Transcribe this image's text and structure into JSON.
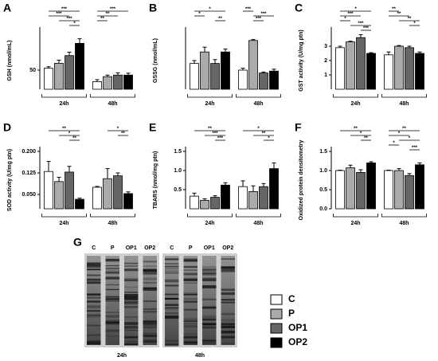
{
  "chart_data": [
    {
      "type": "bar",
      "panel": "A",
      "y_label": "GSH (nmol/mL)",
      "categories": [
        "24h",
        "48h"
      ],
      "ylim": [
        0,
        150
      ],
      "yticks": [
        50
      ],
      "series": [
        {
          "name": "C",
          "color": "#ffffff",
          "values": [
            55,
            20
          ],
          "errors": [
            4,
            5
          ]
        },
        {
          "name": "P",
          "color": "#aaaaaa",
          "values": [
            68,
            33
          ],
          "errors": [
            8,
            4
          ]
        },
        {
          "name": "OP1",
          "color": "#666666",
          "values": [
            88,
            37
          ],
          "errors": [
            9,
            6
          ]
        },
        {
          "name": "OP2",
          "color": "#000000",
          "values": [
            120,
            37
          ],
          "errors": [
            12,
            5
          ]
        }
      ],
      "significance": [
        {
          "group": "24h",
          "pair": [
            "C",
            "OP2"
          ],
          "label": "***"
        },
        {
          "group": "24h",
          "pair": [
            "C",
            "OP1"
          ],
          "label": "***"
        },
        {
          "group": "24h",
          "pair": [
            "P",
            "OP2"
          ],
          "label": "***"
        },
        {
          "group": "24h",
          "pair": [
            "OP1",
            "OP2"
          ],
          "label": "*"
        },
        {
          "group": "48h",
          "pair": [
            "C",
            "OP2"
          ],
          "label": "***"
        },
        {
          "group": "48h",
          "pair": [
            "C",
            "OP1"
          ],
          "label": "**"
        },
        {
          "group": "48h",
          "pair": [
            "C",
            "P"
          ],
          "label": "**"
        }
      ]
    },
    {
      "type": "bar",
      "panel": "B",
      "y_label": "GSSG (nmol/mL)",
      "categories": [
        "24h",
        "48h"
      ],
      "ylim": [
        0,
        60
      ],
      "yticks": [],
      "series": [
        {
          "name": "C",
          "color": "#ffffff",
          "values": [
            27,
            20
          ],
          "errors": [
            3,
            2
          ]
        },
        {
          "name": "P",
          "color": "#aaaaaa",
          "values": [
            39,
            51
          ],
          "errors": [
            5,
            1
          ]
        },
        {
          "name": "OP1",
          "color": "#666666",
          "values": [
            27,
            17
          ],
          "errors": [
            4,
            1
          ]
        },
        {
          "name": "OP2",
          "color": "#000000",
          "values": [
            39,
            19
          ],
          "errors": [
            3,
            2
          ]
        }
      ],
      "significance": [
        {
          "group": "24h",
          "pair": [
            "C",
            "OP2"
          ],
          "label": "*"
        },
        {
          "group": "24h",
          "pair": [
            "C",
            "P"
          ],
          "label": "*"
        },
        {
          "group": "24h",
          "pair": [
            "OP1",
            "OP2"
          ],
          "label": "**"
        },
        {
          "group": "48h",
          "pair": [
            "C",
            "P"
          ],
          "label": "***"
        },
        {
          "group": "48h",
          "pair": [
            "P",
            "OP2"
          ],
          "label": "***"
        },
        {
          "group": "48h",
          "pair": [
            "P",
            "OP1"
          ],
          "label": "***"
        }
      ]
    },
    {
      "type": "bar",
      "panel": "C",
      "y_label": "GST activity (U/mg ptn)",
      "categories": [
        "24h",
        "48h"
      ],
      "ylim": [
        0,
        4
      ],
      "yticks": [
        1,
        2,
        3
      ],
      "series": [
        {
          "name": "C",
          "color": "#ffffff",
          "values": [
            2.9,
            2.4
          ],
          "errors": [
            0.1,
            0.2
          ]
        },
        {
          "name": "P",
          "color": "#aaaaaa",
          "values": [
            3.3,
            3.0
          ],
          "errors": [
            0.05,
            0.05
          ]
        },
        {
          "name": "OP1",
          "color": "#666666",
          "values": [
            3.6,
            2.9
          ],
          "errors": [
            0.2,
            0.1
          ]
        },
        {
          "name": "OP2",
          "color": "#000000",
          "values": [
            2.5,
            2.5
          ],
          "errors": [
            0.05,
            0.1
          ]
        }
      ],
      "significance": [
        {
          "group": "24h",
          "pair": [
            "C",
            "OP2"
          ],
          "label": "*"
        },
        {
          "group": "24h",
          "pair": [
            "C",
            "OP1"
          ],
          "label": "***"
        },
        {
          "group": "24h",
          "pair": [
            "C",
            "P"
          ],
          "label": "*"
        },
        {
          "group": "24h",
          "pair": [
            "P",
            "OP2"
          ],
          "label": "***"
        },
        {
          "group": "24h",
          "pair": [
            "OP1",
            "OP2"
          ],
          "label": "***"
        },
        {
          "group": "48h",
          "pair": [
            "C",
            "P"
          ],
          "label": "**"
        },
        {
          "group": "48h",
          "pair": [
            "C",
            "OP1"
          ],
          "label": "**"
        },
        {
          "group": "48h",
          "pair": [
            "P",
            "OP2"
          ],
          "label": "**"
        },
        {
          "group": "48h",
          "pair": [
            "OP1",
            "OP2"
          ],
          "label": "*"
        }
      ]
    },
    {
      "type": "bar",
      "panel": "D",
      "y_label": "SOD activity (U/mg ptn)",
      "categories": [
        "24h",
        "48h"
      ],
      "ylim": [
        0,
        0.2
      ],
      "yticks": [
        {
          "value": 0.05,
          "label": "0.050"
        },
        0.125,
        {
          "value": 0.2,
          "label": "0.200"
        }
      ],
      "series": [
        {
          "name": "C",
          "color": "#ffffff",
          "values": [
            0.13,
            0.075
          ],
          "errors": [
            0.035,
            0.003
          ]
        },
        {
          "name": "P",
          "color": "#aaaaaa",
          "values": [
            0.095,
            0.105
          ],
          "errors": [
            0.015,
            0.035
          ]
        },
        {
          "name": "OP1",
          "color": "#666666",
          "values": [
            0.128,
            0.115
          ],
          "errors": [
            0.02,
            0.01
          ]
        },
        {
          "name": "OP2",
          "color": "#000000",
          "values": [
            0.033,
            0.053
          ],
          "errors": [
            0.004,
            0.006
          ]
        }
      ],
      "significance": [
        {
          "group": "24h",
          "pair": [
            "C",
            "OP2"
          ],
          "label": "**"
        },
        {
          "group": "24h",
          "pair": [
            "P",
            "OP2"
          ],
          "label": "*"
        },
        {
          "group": "24h",
          "pair": [
            "OP1",
            "OP2"
          ],
          "label": "**"
        },
        {
          "group": "48h",
          "pair": [
            "P",
            "OP2"
          ],
          "label": "*"
        },
        {
          "group": "48h",
          "pair": [
            "OP1",
            "OP2"
          ],
          "label": "**"
        }
      ]
    },
    {
      "type": "bar",
      "panel": "E",
      "y_label": "TBARS (nmol/mg ptn)",
      "categories": [
        "24h",
        "48h"
      ],
      "ylim": [
        0,
        1.5
      ],
      "yticks": [
        0.5,
        {
          "value": 1,
          "label": "1.0"
        },
        1.5
      ],
      "series": [
        {
          "name": "C",
          "color": "#ffffff",
          "values": [
            0.33,
            0.58
          ],
          "errors": [
            0.08,
            0.15
          ]
        },
        {
          "name": "P",
          "color": "#aaaaaa",
          "values": [
            0.22,
            0.45
          ],
          "errors": [
            0.04,
            0.15
          ]
        },
        {
          "name": "OP1",
          "color": "#666666",
          "values": [
            0.3,
            0.58
          ],
          "errors": [
            0.04,
            0.08
          ]
        },
        {
          "name": "OP2",
          "color": "#000000",
          "values": [
            0.62,
            1.05
          ],
          "errors": [
            0.06,
            0.15
          ]
        }
      ],
      "significance": [
        {
          "group": "24h",
          "pair": [
            "C",
            "OP2"
          ],
          "label": "**"
        },
        {
          "group": "24h",
          "pair": [
            "P",
            "OP2"
          ],
          "label": "***"
        },
        {
          "group": "24h",
          "pair": [
            "OP1",
            "OP2"
          ],
          "label": "***"
        },
        {
          "group": "48h",
          "pair": [
            "C",
            "OP2"
          ],
          "label": "*"
        },
        {
          "group": "48h",
          "pair": [
            "P",
            "OP2"
          ],
          "label": "**"
        },
        {
          "group": "48h",
          "pair": [
            "OP1",
            "OP2"
          ],
          "label": "*"
        }
      ]
    },
    {
      "type": "bar",
      "panel": "F",
      "y_label": "Oxidized protein densitometry",
      "categories": [
        "24h",
        "48h"
      ],
      "ylim": [
        0,
        1.5
      ],
      "yticks": [
        {
          "value": 0,
          "label": "0.0"
        },
        0.5,
        {
          "value": 1,
          "label": "1.0"
        },
        1.5
      ],
      "series": [
        {
          "name": "C",
          "color": "#ffffff",
          "values": [
            1.0,
            1.0
          ],
          "errors": [
            0.01,
            0.01
          ]
        },
        {
          "name": "P",
          "color": "#aaaaaa",
          "values": [
            1.07,
            1.0
          ],
          "errors": [
            0.07,
            0.05
          ]
        },
        {
          "name": "OP1",
          "color": "#666666",
          "values": [
            0.95,
            0.87
          ],
          "errors": [
            0.07,
            0.05
          ]
        },
        {
          "name": "OP2",
          "color": "#000000",
          "values": [
            1.2,
            1.15
          ],
          "errors": [
            0.03,
            0.05
          ]
        }
      ],
      "significance": [
        {
          "group": "24h",
          "pair": [
            "C",
            "OP2"
          ],
          "label": "**"
        },
        {
          "group": "24h",
          "pair": [
            "P",
            "OP2"
          ],
          "label": "*"
        },
        {
          "group": "24h",
          "pair": [
            "OP1",
            "OP2"
          ],
          "label": "**"
        },
        {
          "group": "48h",
          "pair": [
            "C",
            "OP2"
          ],
          "label": "**"
        },
        {
          "group": "48h",
          "pair": [
            "C",
            "OP1"
          ],
          "label": "*"
        },
        {
          "group": "48h",
          "pair": [
            "P",
            "OP2"
          ],
          "label": "*"
        },
        {
          "group": "48h",
          "pair": [
            "C",
            "P"
          ],
          "label": "*"
        },
        {
          "group": "48h",
          "pair": [
            "OP1",
            "OP2"
          ],
          "label": "***"
        }
      ]
    }
  ],
  "blot": {
    "panel": "G",
    "lanes": [
      "C",
      "P",
      "OP1",
      "OP2"
    ],
    "groups": [
      "24h",
      "48h"
    ]
  }
}
